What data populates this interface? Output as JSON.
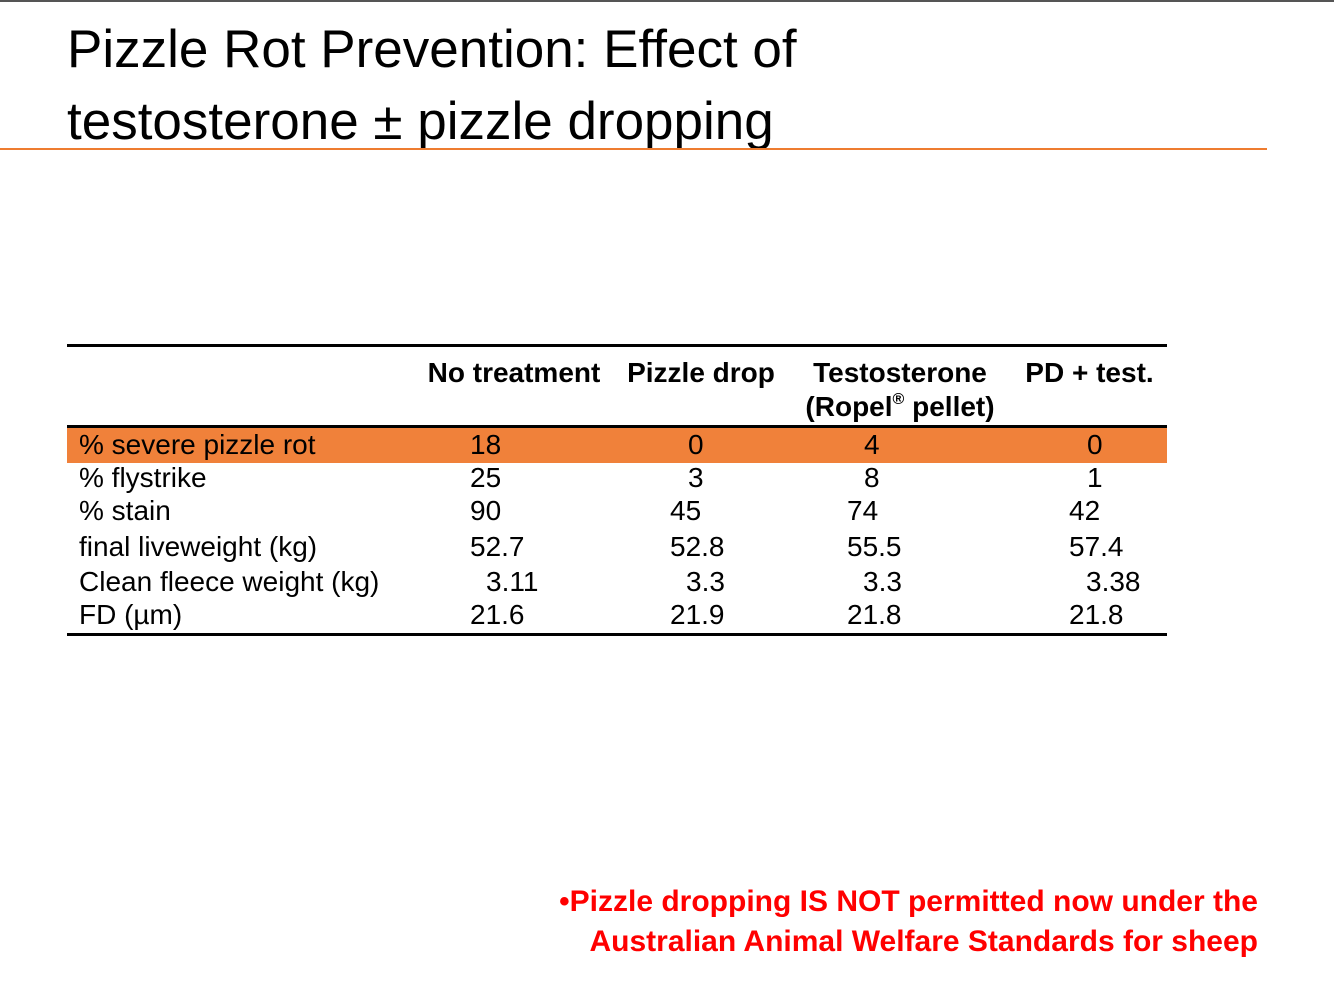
{
  "slide": {
    "title_line1": "Pizzle Rot Prevention: Effect of",
    "title_line2": "testosterone ± pizzle dropping"
  },
  "table": {
    "headers": {
      "col1": "No treatment",
      "col2": "Pizzle drop",
      "col3_line1": "Testosterone",
      "col3_line2_prefix": "(Ropel",
      "col3_reg": "®",
      "col3_line2_suffix": " pellet)",
      "col4": "PD + test."
    },
    "rows": [
      {
        "label": "% severe pizzle rot",
        "values": [
          "18",
          "0",
          "4",
          "0"
        ]
      },
      {
        "label": "% flystrike",
        "values": [
          "25",
          "3",
          "8",
          "1"
        ]
      },
      {
        "label": "% stain",
        "values": [
          "90",
          "45",
          "74",
          "42"
        ]
      },
      {
        "label": "final liveweight (kg)",
        "values": [
          "52.7",
          "52.8",
          "55.5",
          "57.4"
        ]
      },
      {
        "label": "Clean fleece weight (kg)",
        "values": [
          "3.11",
          "3.3",
          "3.3",
          "3.38"
        ]
      },
      {
        "label": "FD (µm)",
        "values": [
          "21.6",
          "21.9",
          "21.8",
          "21.8"
        ]
      }
    ]
  },
  "note": {
    "line1": "•Pizzle dropping IS NOT permitted now under the",
    "line2": "Australian Animal Welfare Standards for sheep"
  },
  "colors": {
    "accent_orange": "#ee7c30",
    "highlight_row": "#f0813a",
    "note_red": "#ff0000"
  }
}
